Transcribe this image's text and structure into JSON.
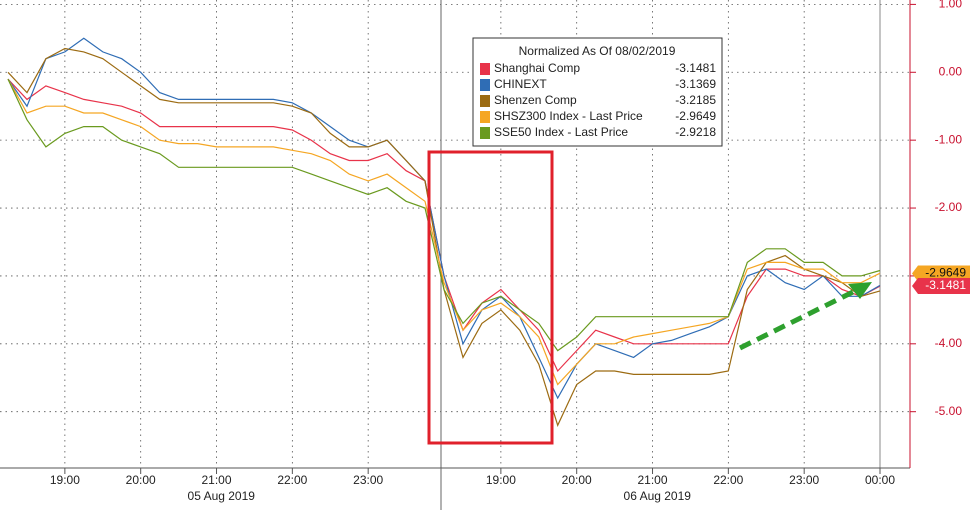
{
  "chart_data": {
    "type": "line",
    "legend_title": "Normalized As Of 08/02/2019",
    "categories": [
      null,
      null,
      null,
      "19:00",
      null,
      null,
      null,
      "20:00",
      null,
      null,
      null,
      "21:00",
      null,
      null,
      null,
      "22:00",
      null,
      null,
      null,
      "23:00",
      null,
      null,
      null,
      null,
      null,
      null,
      "19:00",
      null,
      null,
      null,
      "20:00",
      null,
      null,
      null,
      "21:00",
      null,
      null,
      null,
      "22:00",
      null,
      null,
      null,
      "23:00",
      null,
      null,
      null,
      "00:00"
    ],
    "x_sublabels": [
      "05 Aug 2019",
      "06 Aug 2019"
    ],
    "series": [
      {
        "name": "Shanghai Comp",
        "color": "#e8334a",
        "last": -3.1481,
        "values": [
          -0.1,
          -0.4,
          -0.2,
          -0.3,
          -0.4,
          -0.45,
          -0.5,
          -0.6,
          -0.8,
          -0.8,
          -0.8,
          -0.8,
          -0.8,
          -0.8,
          -0.8,
          -0.85,
          -1.0,
          -1.2,
          -1.3,
          -1.3,
          -1.2,
          -1.45,
          -1.6,
          -3.0,
          -3.8,
          -3.4,
          -3.2,
          -3.5,
          -3.8,
          -4.4,
          -4.1,
          -3.8,
          -3.9,
          -4.0,
          -4.0,
          -4.0,
          -4.0,
          -4.0,
          -4.0,
          -3.3,
          -2.9,
          -2.9,
          -3.0,
          -3.0,
          -3.2,
          -3.3,
          -3.15
        ]
      },
      {
        "name": "CHINEXT",
        "color": "#2f6db5",
        "last": -3.1369,
        "values": [
          -0.1,
          -0.5,
          0.2,
          0.3,
          0.5,
          0.3,
          0.2,
          0.0,
          -0.3,
          -0.4,
          -0.4,
          -0.4,
          -0.4,
          -0.4,
          -0.4,
          -0.45,
          -0.6,
          -0.8,
          -1.0,
          -1.1,
          -1.0,
          -1.3,
          -1.6,
          -3.0,
          -4.0,
          -3.5,
          -3.3,
          -3.6,
          -4.2,
          -4.8,
          -4.3,
          -4.0,
          -4.1,
          -4.2,
          -4.0,
          -3.95,
          -3.85,
          -3.75,
          -3.6,
          -3.0,
          -2.9,
          -3.1,
          -3.2,
          -3.0,
          -3.3,
          -3.3,
          -3.14
        ]
      },
      {
        "name": "Shenzen Comp",
        "color": "#9c6b12",
        "last": -3.2185,
        "values": [
          0.0,
          -0.3,
          0.2,
          0.35,
          0.3,
          0.2,
          0.0,
          -0.2,
          -0.4,
          -0.45,
          -0.45,
          -0.45,
          -0.45,
          -0.45,
          -0.45,
          -0.5,
          -0.6,
          -0.9,
          -1.1,
          -1.1,
          -1.0,
          -1.3,
          -1.6,
          -3.2,
          -4.2,
          -3.7,
          -3.5,
          -3.8,
          -4.3,
          -5.2,
          -4.6,
          -4.4,
          -4.4,
          -4.45,
          -4.45,
          -4.45,
          -4.45,
          -4.45,
          -4.4,
          -3.2,
          -2.8,
          -2.7,
          -2.9,
          -3.0,
          -3.1,
          -3.3,
          -3.22
        ]
      },
      {
        "name": "SHSZ300 Index - Last Price",
        "color": "#f5a623",
        "last": -2.9649,
        "values": [
          -0.1,
          -0.6,
          -0.5,
          -0.5,
          -0.6,
          -0.6,
          -0.7,
          -0.8,
          -1.0,
          -1.05,
          -1.05,
          -1.1,
          -1.1,
          -1.1,
          -1.1,
          -1.15,
          -1.2,
          -1.3,
          -1.5,
          -1.6,
          -1.5,
          -1.7,
          -1.9,
          -3.1,
          -3.8,
          -3.5,
          -3.4,
          -3.6,
          -3.9,
          -4.6,
          -4.3,
          -4.0,
          -4.0,
          -3.9,
          -3.85,
          -3.8,
          -3.75,
          -3.7,
          -3.6,
          -2.9,
          -2.8,
          -2.8,
          -2.9,
          -2.9,
          -3.1,
          -3.1,
          -2.96
        ]
      },
      {
        "name": "SSE50 Index - Last Price",
        "color": "#6a9a1f",
        "last": -2.9218,
        "values": [
          -0.1,
          -0.7,
          -1.1,
          -0.9,
          -0.8,
          -0.8,
          -1.0,
          -1.1,
          -1.2,
          -1.4,
          -1.4,
          -1.4,
          -1.4,
          -1.4,
          -1.4,
          -1.4,
          -1.5,
          -1.6,
          -1.7,
          -1.8,
          -1.7,
          -1.9,
          -2.0,
          -3.2,
          -3.7,
          -3.4,
          -3.3,
          -3.5,
          -3.7,
          -4.1,
          -3.9,
          -3.6,
          -3.6,
          -3.6,
          -3.6,
          -3.6,
          -3.6,
          -3.6,
          -3.6,
          -2.8,
          -2.6,
          -2.6,
          -2.8,
          -2.8,
          -3.0,
          -3.0,
          -2.92
        ]
      }
    ],
    "tagged_series": [
      3,
      0
    ],
    "ylim": [
      -5.8,
      1.05
    ],
    "yticks": [
      {
        "value": 1,
        "label": "1.00"
      },
      {
        "value": 0,
        "label": "0.00"
      },
      {
        "value": -1,
        "label": "-1.00"
      },
      {
        "value": -2,
        "label": "-2.00"
      },
      {
        "value": -3,
        "label": "-3.00"
      },
      {
        "value": -4,
        "label": "-4.00"
      },
      {
        "value": -5,
        "label": "-5.00"
      }
    ],
    "grid": true
  }
}
